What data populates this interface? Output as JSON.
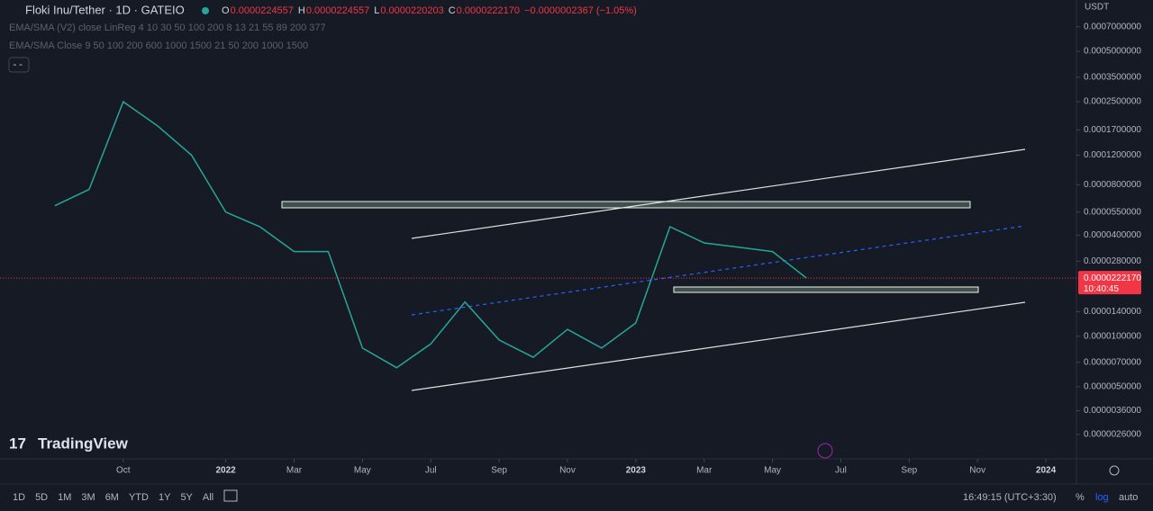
{
  "chart_data": {
    "type": "line",
    "log": true,
    "grid": false,
    "title": "Floki Inu/Tether · 1D · GATEIO",
    "currency": "USDT",
    "x": [
      "2021-08",
      "2021-09",
      "2021-10",
      "2021-11",
      "2021-12",
      "2022-01",
      "2022-02",
      "2022-03",
      "2022-04",
      "2022-05",
      "2022-06",
      "2022-07",
      "2022-08",
      "2022-09",
      "2022-10",
      "2022-11",
      "2022-12",
      "2023-01",
      "2023-02",
      "2023-03",
      "2023-04",
      "2023-05",
      "2023-06"
    ],
    "series": [
      {
        "color": "#26a69a",
        "values": [
          6e-05,
          7.5e-05,
          0.00025,
          0.00018,
          0.00012,
          5.5e-05,
          4.5e-05,
          3.2e-05,
          3.2e-05,
          8.5e-06,
          6.5e-06,
          9e-06,
          1.6e-05,
          9.5e-06,
          7.5e-06,
          1.1e-05,
          8.5e-06,
          1.2e-05,
          4.5e-05,
          3.6e-05,
          3.4e-05,
          3.2e-05,
          2.22e-05
        ]
      }
    ],
    "xlim": [
      "2021-07",
      "2024-02"
    ],
    "xticks": [
      {
        "value": "2021-10",
        "label": "Oct"
      },
      {
        "value": "2022-01",
        "label": "2022"
      },
      {
        "value": "2022-03",
        "label": "Mar"
      },
      {
        "value": "2022-05",
        "label": "May"
      },
      {
        "value": "2022-07",
        "label": "Jul"
      },
      {
        "value": "2022-09",
        "label": "Sep"
      },
      {
        "value": "2022-11",
        "label": "Nov"
      },
      {
        "value": "2023-01",
        "label": "2023"
      },
      {
        "value": "2023-03",
        "label": "Mar"
      },
      {
        "value": "2023-05",
        "label": "May"
      },
      {
        "value": "2023-07",
        "label": "Jul"
      },
      {
        "value": "2023-09",
        "label": "Sep"
      },
      {
        "value": "2023-11",
        "label": "Nov"
      },
      {
        "value": "2024-01",
        "label": "2024"
      }
    ],
    "ylim": [
      1.86e-06,
      0.00101
    ],
    "yticks": [
      {
        "value": 0.0007,
        "label": "0.0007000000"
      },
      {
        "value": 0.0005,
        "label": "0.0005000000"
      },
      {
        "value": 0.00035,
        "label": "0.0003500000"
      },
      {
        "value": 0.00025,
        "label": "0.0002500000"
      },
      {
        "value": 0.00017,
        "label": "0.0001700000"
      },
      {
        "value": 0.00012,
        "label": "0.0001200000"
      },
      {
        "value": 8e-05,
        "label": "0.0000800000"
      },
      {
        "value": 5.5e-05,
        "label": "0.0000550000"
      },
      {
        "value": 4e-05,
        "label": "0.0000400000"
      },
      {
        "value": 2.8e-05,
        "label": "0.0000280000"
      },
      {
        "value": 1.4e-05,
        "label": "0.0000140000"
      },
      {
        "value": 1e-05,
        "label": "0.0000100000"
      },
      {
        "value": 7e-06,
        "label": "0.0000070000"
      },
      {
        "value": 5e-06,
        "label": "0.0000050000"
      },
      {
        "value": 3.6e-06,
        "label": "0.0000036000"
      },
      {
        "value": 2.6e-06,
        "label": "0.0000026000"
      }
    ],
    "price_line": {
      "value": 2.2217e-05,
      "label": "0.0000222170",
      "countdown": "10:40:45"
    }
  },
  "header": {
    "ohlc": [
      {
        "key": "O",
        "value": "0.0000224557"
      },
      {
        "key": "H",
        "value": "0.0000224557"
      },
      {
        "key": "L",
        "value": "0.0000220203"
      },
      {
        "key": "C",
        "value": "0.0000222170"
      }
    ],
    "change": "−0.0000002367 (−1.05%)",
    "indicators": [
      "EMA/SMA (V2) close LinReg 4 10 30 50 100 200 8 13 21 55 89 200 377",
      "EMA/SMA Close 9 50 100 200 600 1000 1500 21 50 200 1000 1500"
    ]
  },
  "logo": "TradingView",
  "toolbar": {
    "ranges": [
      "1D",
      "5D",
      "1M",
      "3M",
      "6M",
      "YTD",
      "1Y",
      "5Y",
      "All"
    ],
    "clock": "16:49:15 (UTC+3:30)",
    "percent": "%",
    "log": "log",
    "auto": "auto"
  }
}
